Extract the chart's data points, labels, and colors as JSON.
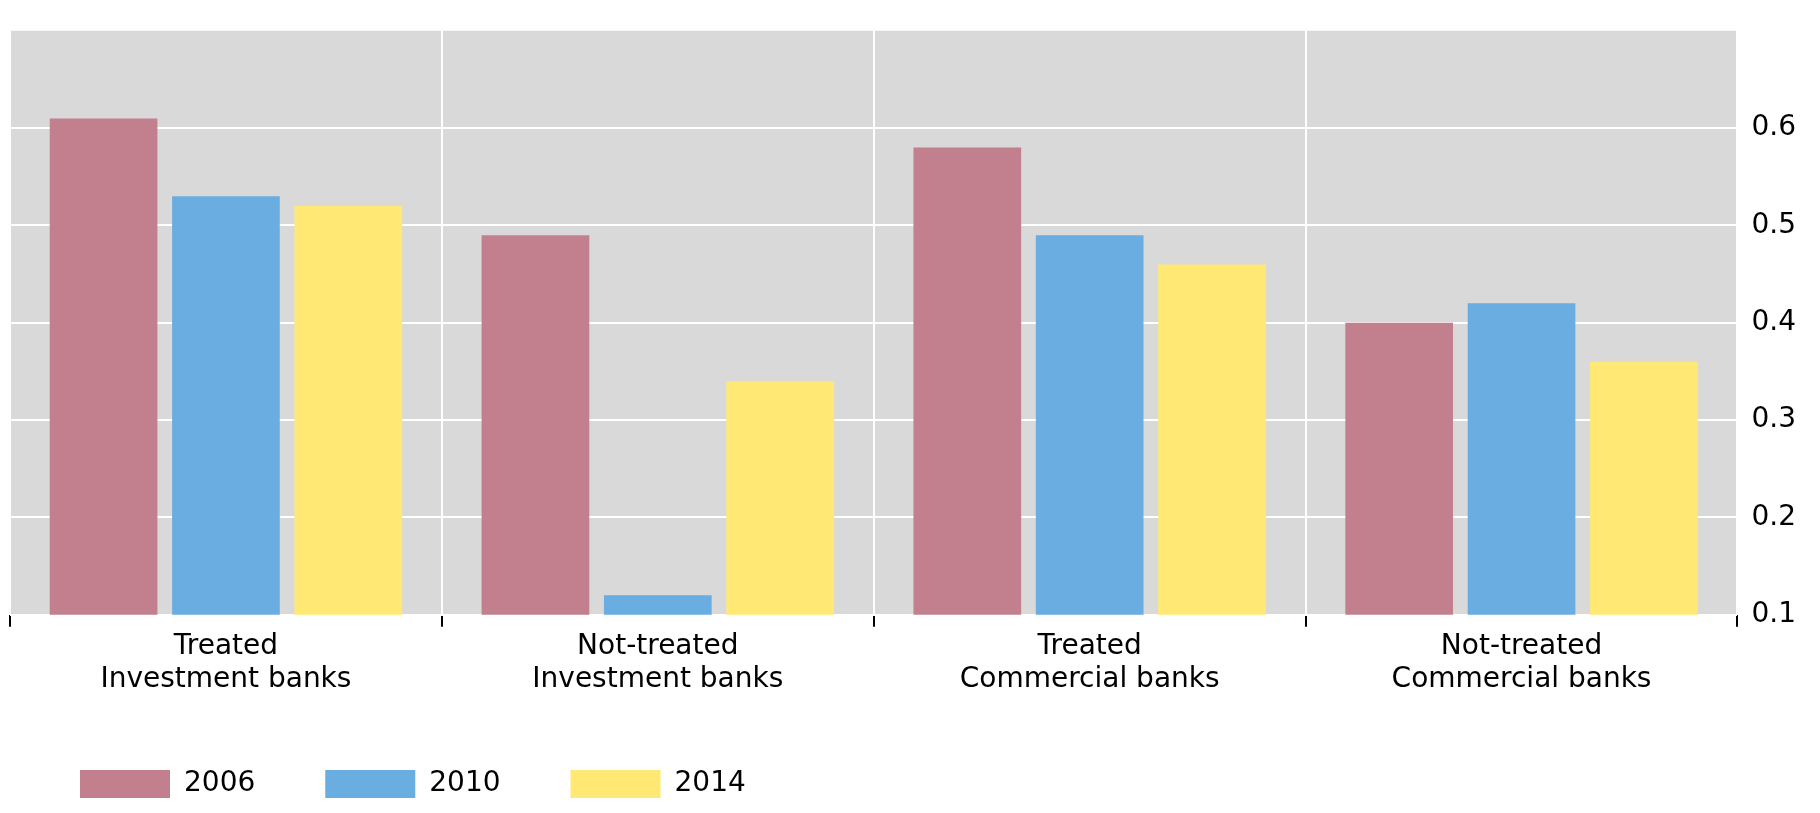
{
  "chart_data": {
    "type": "bar",
    "categories": [
      "Treated\nInvestment banks",
      "Not-treated\nInvestment banks",
      "Treated\nCommercial banks",
      "Not-treated\nCommercial banks"
    ],
    "series": [
      {
        "name": "2006",
        "color": "#c27f8e",
        "values": [
          0.61,
          0.49,
          0.58,
          0.4
        ]
      },
      {
        "name": "2010",
        "color": "#6aade0",
        "values": [
          0.53,
          0.12,
          0.49,
          0.42
        ]
      },
      {
        "name": "2014",
        "color": "#ffe873",
        "values": [
          0.52,
          0.34,
          0.46,
          0.36
        ]
      }
    ],
    "ylim": [
      0.1,
      0.7
    ],
    "yticks": [
      0.1,
      0.2,
      0.3,
      0.4,
      0.5,
      0.6
    ],
    "grid": true,
    "legend": "bottom left"
  }
}
